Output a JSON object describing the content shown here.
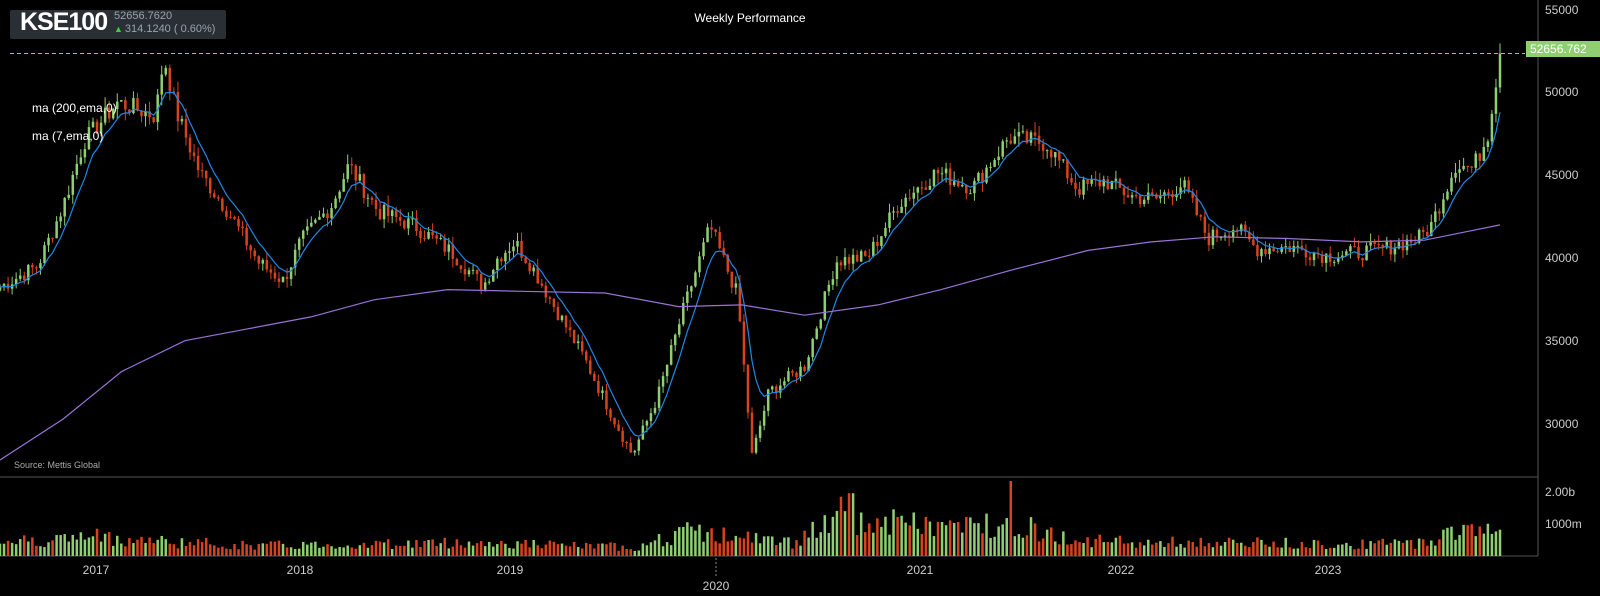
{
  "ticker": {
    "symbol": "KSE100",
    "last": "52656.7620",
    "change": "314.1240 ( 0.60%)",
    "up_color": "#3ecf3e"
  },
  "indicators": [
    "ma (200,ema,0)",
    "ma (7,ema,0)"
  ],
  "source": "Source: Mettis Global",
  "colors": {
    "up": "#8fcf72",
    "down": "#d8431f",
    "ma200": "#9a72d8",
    "ma7": "#1e88e5",
    "background": "#000000"
  },
  "chart_data": {
    "type": "candlestick",
    "title": "Weekly Performance",
    "last_price": 52656.762,
    "last_price_label": "52656.762",
    "y_ticks": [
      "55000",
      "50000",
      "45000",
      "40000",
      "35000",
      "30000"
    ],
    "y_range": [
      27800,
      55800
    ],
    "volume_ticks": [
      "2.00b",
      "1000m"
    ],
    "volume_range": [
      0,
      2150
    ],
    "x_ticks": [
      "2017",
      "2018",
      "2019",
      "2020",
      "2021",
      "2022",
      "2023"
    ],
    "x_range": [
      2016.62,
      2023.76
    ],
    "anchors": [
      [
        2016.62,
        38950
      ],
      [
        2016.8,
        40200
      ],
      [
        2016.92,
        43700
      ],
      [
        2017.02,
        47500
      ],
      [
        2017.18,
        49800
      ],
      [
        2017.36,
        49000
      ],
      [
        2017.4,
        52500
      ],
      [
        2017.46,
        49200
      ],
      [
        2017.57,
        45700
      ],
      [
        2017.7,
        43500
      ],
      [
        2017.85,
        40400
      ],
      [
        2017.97,
        39300
      ],
      [
        2018.05,
        41600
      ],
      [
        2018.2,
        43800
      ],
      [
        2018.28,
        46100
      ],
      [
        2018.42,
        43400
      ],
      [
        2018.6,
        42500
      ],
      [
        2018.77,
        41000
      ],
      [
        2018.92,
        39000
      ],
      [
        2018.99,
        40700
      ],
      [
        2019.07,
        41600
      ],
      [
        2019.15,
        40200
      ],
      [
        2019.25,
        38000
      ],
      [
        2019.4,
        34800
      ],
      [
        2019.55,
        31000
      ],
      [
        2019.63,
        29100
      ],
      [
        2019.75,
        32500
      ],
      [
        2019.87,
        37500
      ],
      [
        2020.0,
        42500
      ],
      [
        2020.13,
        38500
      ],
      [
        2020.2,
        29000
      ],
      [
        2020.28,
        32800
      ],
      [
        2020.45,
        34300
      ],
      [
        2020.6,
        40500
      ],
      [
        2020.75,
        40700
      ],
      [
        2020.9,
        43900
      ],
      [
        2021.08,
        45700
      ],
      [
        2021.25,
        44800
      ],
      [
        2021.42,
        47700
      ],
      [
        2021.6,
        47400
      ],
      [
        2021.75,
        44700
      ],
      [
        2021.88,
        45200
      ],
      [
        2022.0,
        44300
      ],
      [
        2022.12,
        44100
      ],
      [
        2022.25,
        45000
      ],
      [
        2022.37,
        41800
      ],
      [
        2022.5,
        42500
      ],
      [
        2022.6,
        41200
      ],
      [
        2022.77,
        41300
      ],
      [
        2022.93,
        40800
      ],
      [
        2023.05,
        40900
      ],
      [
        2023.2,
        41200
      ],
      [
        2023.37,
        41800
      ],
      [
        2023.43,
        42500
      ],
      [
        2023.55,
        46200
      ],
      [
        2023.63,
        45900
      ],
      [
        2023.7,
        47800
      ],
      [
        2023.76,
        52656
      ]
    ],
    "ma200": [
      [
        2016.62,
        28800
      ],
      [
        2016.92,
        31200
      ],
      [
        2017.2,
        34000
      ],
      [
        2017.5,
        35800
      ],
      [
        2017.8,
        36500
      ],
      [
        2018.1,
        37200
      ],
      [
        2018.4,
        38200
      ],
      [
        2018.75,
        38800
      ],
      [
        2019.1,
        38700
      ],
      [
        2019.5,
        38600
      ],
      [
        2019.85,
        37800
      ],
      [
        2020.15,
        37900
      ],
      [
        2020.45,
        37300
      ],
      [
        2020.8,
        37900
      ],
      [
        2021.1,
        38800
      ],
      [
        2021.45,
        40000
      ],
      [
        2021.8,
        41100
      ],
      [
        2022.1,
        41600
      ],
      [
        2022.4,
        41900
      ],
      [
        2022.75,
        41800
      ],
      [
        2023.1,
        41600
      ],
      [
        2023.4,
        41700
      ],
      [
        2023.6,
        42200
      ],
      [
        2023.76,
        42600
      ]
    ],
    "volume": {
      "base": [
        [
          2016.62,
          420
        ],
        [
          2016.9,
          480
        ],
        [
          2017.05,
          560
        ],
        [
          2017.4,
          420
        ],
        [
          2017.8,
          300
        ],
        [
          2018.3,
          330
        ],
        [
          2018.8,
          380
        ],
        [
          2019.1,
          350
        ],
        [
          2019.4,
          280
        ],
        [
          2019.65,
          260
        ],
        [
          2019.9,
          700
        ],
        [
          2020.1,
          560
        ],
        [
          2020.4,
          380
        ],
        [
          2020.55,
          900
        ],
        [
          2020.85,
          950
        ],
        [
          2021.2,
          820
        ],
        [
          2021.42,
          1000
        ],
        [
          2021.7,
          480
        ],
        [
          2022.0,
          390
        ],
        [
          2022.4,
          380
        ],
        [
          2022.8,
          360
        ],
        [
          2023.1,
          330
        ],
        [
          2023.4,
          380
        ],
        [
          2023.58,
          820
        ],
        [
          2023.76,
          700
        ]
      ],
      "spikes": [
        [
          2021.43,
          2150
        ],
        [
          2020.67,
          1800
        ],
        [
          2020.63,
          1700
        ]
      ]
    }
  }
}
